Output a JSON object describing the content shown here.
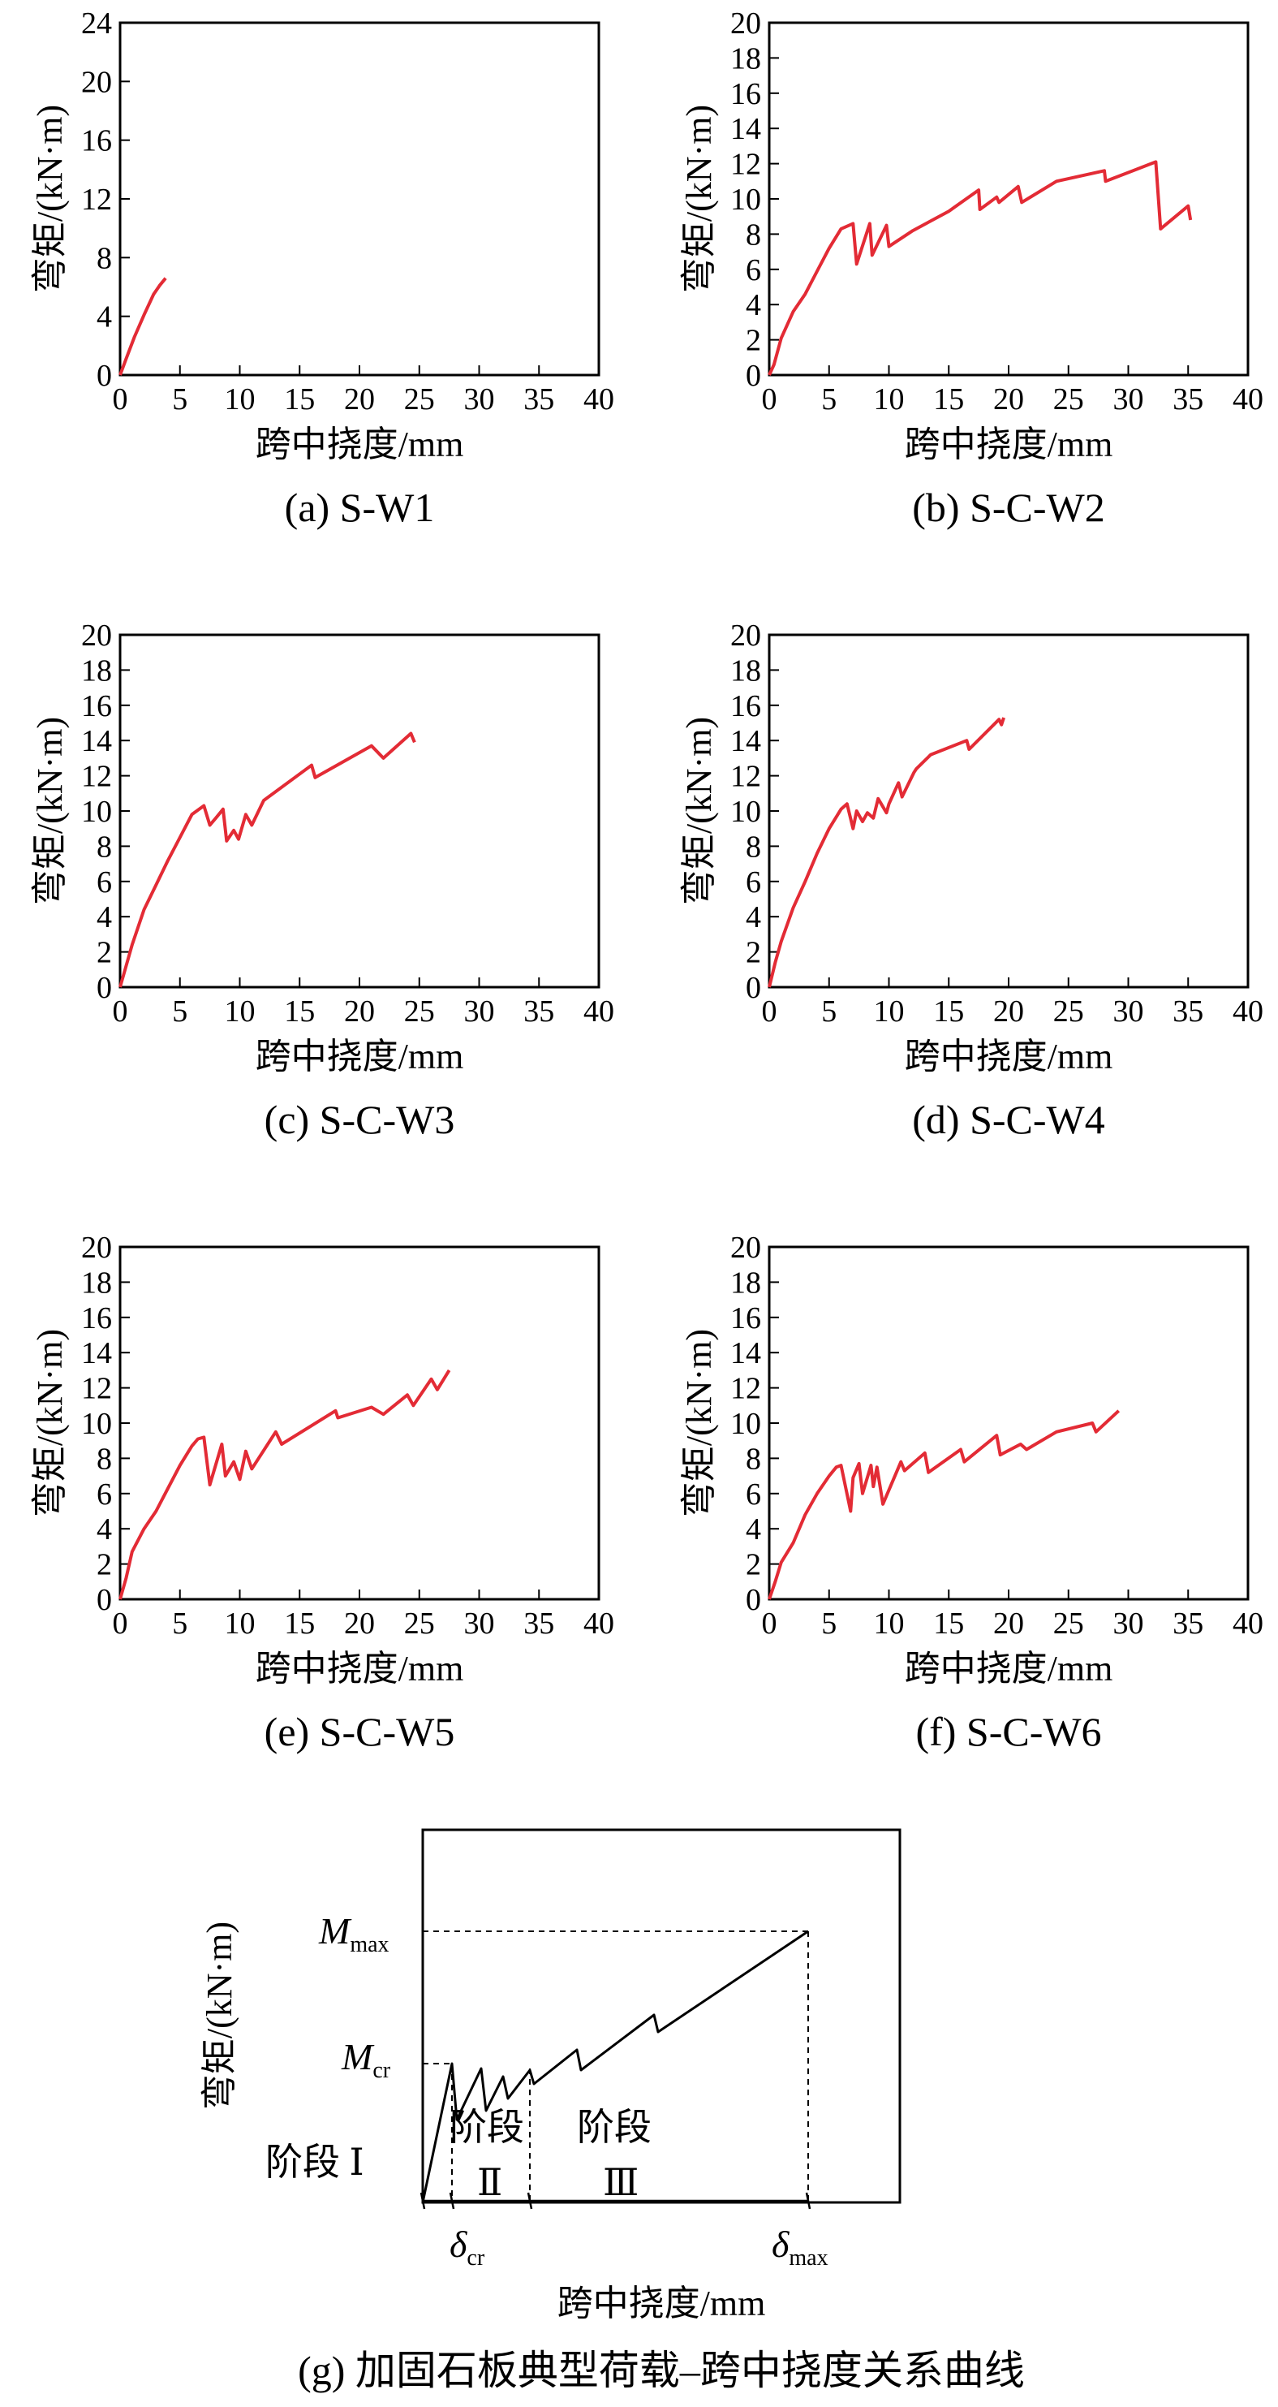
{
  "chart_data": [
    {
      "type": "line",
      "caption": "(a) S-W1",
      "xlabel": "跨中挠度/mm",
      "ylabel": "弯矩/(kN·m)",
      "xlim": [
        0,
        40
      ],
      "ylim": [
        0,
        24
      ],
      "xticks": [
        0,
        5,
        10,
        15,
        20,
        25,
        30,
        35,
        40
      ],
      "yticks": [
        0,
        4,
        8,
        12,
        16,
        20,
        24
      ],
      "color": "#e32b35",
      "series": [
        {
          "x": [
            0,
            0.5,
            1.2,
            2.0,
            2.8,
            3.3,
            3.8
          ],
          "y": [
            0,
            1.1,
            2.6,
            4.1,
            5.5,
            6.1,
            6.6
          ]
        }
      ]
    },
    {
      "type": "line",
      "caption": "(b) S-C-W2",
      "xlabel": "跨中挠度/mm",
      "ylabel": "弯矩/(kN·m)",
      "xlim": [
        0,
        40
      ],
      "ylim": [
        0,
        20
      ],
      "xticks": [
        0,
        5,
        10,
        15,
        20,
        25,
        30,
        35,
        40
      ],
      "yticks": [
        0,
        2,
        4,
        6,
        8,
        10,
        12,
        14,
        16,
        18,
        20
      ],
      "color": "#e32b35",
      "series": [
        {
          "x": [
            0,
            0.4,
            1,
            2,
            3,
            4,
            5,
            6,
            7,
            7.3,
            8.4,
            8.6,
            9.8,
            10,
            12,
            15,
            17.5,
            17.6,
            19,
            19.2,
            20.8,
            21.1,
            24,
            28,
            28.1,
            32.3,
            32.7,
            35,
            35.2
          ],
          "y": [
            0,
            0.6,
            2.1,
            3.6,
            4.6,
            5.9,
            7.2,
            8.3,
            8.6,
            6.3,
            8.6,
            6.8,
            8.5,
            7.3,
            8.2,
            9.3,
            10.5,
            9.4,
            10.1,
            9.8,
            10.7,
            9.8,
            11,
            11.6,
            11,
            12.1,
            8.3,
            9.6,
            8.8
          ]
        }
      ]
    },
    {
      "type": "line",
      "caption": "(c) S-C-W3",
      "xlabel": "跨中挠度/mm",
      "ylabel": "弯矩/(kN·m)",
      "xlim": [
        0,
        40
      ],
      "ylim": [
        0,
        20
      ],
      "xticks": [
        0,
        5,
        10,
        15,
        20,
        25,
        30,
        35,
        40
      ],
      "yticks": [
        0,
        2,
        4,
        6,
        8,
        10,
        12,
        14,
        16,
        18,
        20
      ],
      "color": "#e32b35",
      "series": [
        {
          "x": [
            0,
            0.5,
            1,
            2,
            3,
            4,
            5,
            6,
            7,
            7.5,
            8,
            8.6,
            8.9,
            9.5,
            9.9,
            10.5,
            11,
            12,
            16,
            16.3,
            21,
            22,
            24.3,
            24.6
          ],
          "y": [
            0,
            1.2,
            2.4,
            4.4,
            5.8,
            7.2,
            8.5,
            9.8,
            10.3,
            9.2,
            9.6,
            10.1,
            8.3,
            8.9,
            8.4,
            9.8,
            9.2,
            10.6,
            12.6,
            11.9,
            13.7,
            13,
            14.4,
            13.9
          ]
        }
      ]
    },
    {
      "type": "line",
      "caption": "(d) S-C-W4",
      "xlabel": "跨中挠度/mm",
      "ylabel": "弯矩/(kN·m)",
      "xlim": [
        0,
        40
      ],
      "ylim": [
        0,
        20
      ],
      "xticks": [
        0,
        5,
        10,
        15,
        20,
        25,
        30,
        35,
        40
      ],
      "yticks": [
        0,
        2,
        4,
        6,
        8,
        10,
        12,
        14,
        16,
        18,
        20
      ],
      "color": "#e32b35",
      "series": [
        {
          "x": [
            0,
            0.5,
            1,
            2,
            3,
            4,
            5,
            6,
            6.5,
            7,
            7.3,
            7.8,
            8.2,
            8.7,
            9.1,
            9.8,
            10,
            10.8,
            11.1,
            12.1,
            12.3,
            13.5,
            16.5,
            16.7,
            19.2,
            19.4,
            19.6
          ],
          "y": [
            0,
            1.4,
            2.6,
            4.5,
            6,
            7.6,
            9,
            10.1,
            10.4,
            9,
            10,
            9.4,
            9.9,
            9.6,
            10.7,
            9.9,
            10.4,
            11.6,
            10.8,
            12.2,
            12.4,
            13.2,
            14,
            13.5,
            15.2,
            14.9,
            15.3
          ]
        }
      ]
    },
    {
      "type": "line",
      "caption": "(e) S-C-W5",
      "xlabel": "跨中挠度/mm",
      "ylabel": "弯矩/(kN·m)",
      "xlim": [
        0,
        40
      ],
      "ylim": [
        0,
        20
      ],
      "xticks": [
        0,
        5,
        10,
        15,
        20,
        25,
        30,
        35,
        40
      ],
      "yticks": [
        0,
        2,
        4,
        6,
        8,
        10,
        12,
        14,
        16,
        18,
        20
      ],
      "color": "#e32b35",
      "series": [
        {
          "x": [
            0,
            0.5,
            1,
            2,
            3,
            4,
            5,
            6,
            6.5,
            7,
            7.5,
            8.5,
            8.8,
            9.5,
            10,
            10.5,
            11,
            13,
            13.5,
            18,
            18.2,
            21,
            22,
            24,
            24.5,
            26,
            26.5,
            27.5
          ],
          "y": [
            0,
            1.2,
            2.7,
            4,
            5,
            6.3,
            7.6,
            8.7,
            9.1,
            9.2,
            6.5,
            8.8,
            7,
            7.8,
            6.8,
            8.4,
            7.4,
            9.5,
            8.8,
            10.7,
            10.3,
            10.9,
            10.5,
            11.6,
            11,
            12.5,
            11.9,
            13
          ]
        }
      ]
    },
    {
      "type": "line",
      "caption": "(f) S-C-W6",
      "xlabel": "跨中挠度/mm",
      "ylabel": "弯矩/(kN·m)",
      "xlim": [
        0,
        40
      ],
      "ylim": [
        0,
        20
      ],
      "xticks": [
        0,
        5,
        10,
        15,
        20,
        25,
        30,
        35,
        40
      ],
      "yticks": [
        0,
        2,
        4,
        6,
        8,
        10,
        12,
        14,
        16,
        18,
        20
      ],
      "color": "#e32b35",
      "series": [
        {
          "x": [
            0,
            0.5,
            1,
            2,
            3,
            4,
            5,
            5.6,
            6,
            6.8,
            7,
            7.5,
            7.8,
            8.5,
            8.7,
            9,
            9.5,
            11,
            11.3,
            13,
            13.3,
            16,
            16.3,
            19,
            19.3,
            21,
            21.5,
            24,
            27,
            27.3,
            29.2
          ],
          "y": [
            0,
            1,
            2.1,
            3.2,
            4.8,
            6,
            7,
            7.5,
            7.6,
            5,
            6.9,
            7.7,
            6,
            7.6,
            6.4,
            7.5,
            5.4,
            7.8,
            7.3,
            8.3,
            7.2,
            8.5,
            7.8,
            9.3,
            8.2,
            8.8,
            8.5,
            9.5,
            10,
            9.5,
            10.7
          ]
        }
      ]
    }
  ],
  "schematic": {
    "caption": "(g) 加固石板典型荷载–跨中挠度关系曲线",
    "xlabel": "跨中挠度/mm",
    "ylabel": "弯矩/(kN·m)",
    "m_max_main": "M",
    "m_max_sub": "max",
    "m_cr_main": "M",
    "m_cr_sub": "cr",
    "d_cr_main": "δ",
    "d_cr_sub": "cr",
    "d_max_main": "δ",
    "d_max_sub": "max",
    "stage1_label": "阶段 Ⅰ",
    "stage2_label": "阶段",
    "stage2_numeral": "Ⅱ",
    "stage3_label": "阶段",
    "stage3_numeral": "Ⅲ"
  }
}
